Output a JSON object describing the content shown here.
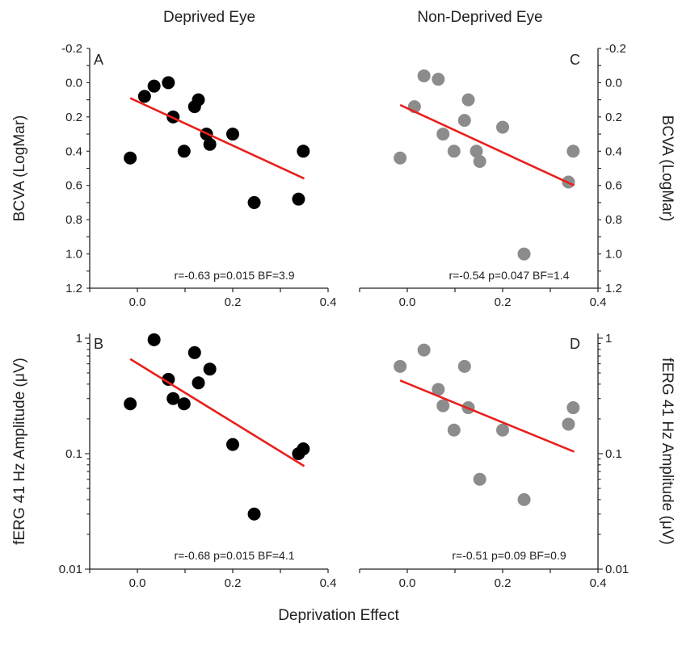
{
  "figure": {
    "col_titles": [
      "Deprived Eye",
      "Non-Deprived Eye"
    ],
    "xlabel": "Deprivation Effect"
  },
  "chart_data": [
    {
      "type": "scatter",
      "panel": "A",
      "ylabel": "BCVA (LogMar)",
      "y_axis": "left",
      "y_scale": "linear",
      "y_inverted": true,
      "ylim": [
        -0.2,
        1.2
      ],
      "yticks": [
        -0.2,
        0.0,
        0.2,
        0.4,
        0.6,
        0.8,
        1.0,
        1.2
      ],
      "ytick_labels": [
        "-0.2",
        "0.0",
        "0.2",
        "0.4",
        "0.6",
        "0.8",
        "1.0",
        "1.2"
      ],
      "xlim": [
        -0.1,
        0.4
      ],
      "xticks": [
        0.0,
        0.2,
        0.4
      ],
      "xtick_labels": [
        "0.0",
        "0.2",
        "0.4"
      ],
      "point_color": "#000000",
      "fit_color": "#e8201c",
      "points": [
        [
          -0.015,
          0.44
        ],
        [
          0.015,
          0.08
        ],
        [
          0.035,
          0.02
        ],
        [
          0.065,
          0.0
        ],
        [
          0.075,
          0.2
        ],
        [
          0.098,
          0.4
        ],
        [
          0.12,
          0.14
        ],
        [
          0.128,
          0.1
        ],
        [
          0.145,
          0.3
        ],
        [
          0.152,
          0.36
        ],
        [
          0.2,
          0.3
        ],
        [
          0.245,
          0.7
        ],
        [
          0.338,
          0.68
        ],
        [
          0.348,
          0.4
        ]
      ],
      "fit": [
        [
          -0.015,
          0.09
        ],
        [
          0.35,
          0.56
        ]
      ],
      "stats": "r=-0.63 p=0.015 BF=3.9"
    },
    {
      "type": "scatter",
      "panel": "C",
      "ylabel": "BCVA (LogMar)",
      "y_axis": "right",
      "y_scale": "linear",
      "y_inverted": true,
      "ylim": [
        -0.2,
        1.2
      ],
      "yticks": [
        -0.2,
        0.0,
        0.2,
        0.4,
        0.6,
        0.8,
        1.0,
        1.2
      ],
      "ytick_labels": [
        "-0.2",
        "0.0",
        "0.2",
        "0.4",
        "0.6",
        "0.8",
        "1.0",
        "1.2"
      ],
      "xlim": [
        -0.1,
        0.4
      ],
      "xticks": [
        0.0,
        0.2,
        0.4
      ],
      "xtick_labels": [
        "0.0",
        "0.2",
        "0.4"
      ],
      "point_color": "#8c8c8c",
      "fit_color": "#e8201c",
      "points": [
        [
          -0.015,
          0.44
        ],
        [
          0.015,
          0.14
        ],
        [
          0.035,
          -0.04
        ],
        [
          0.065,
          -0.02
        ],
        [
          0.075,
          0.3
        ],
        [
          0.098,
          0.4
        ],
        [
          0.12,
          0.22
        ],
        [
          0.128,
          0.1
        ],
        [
          0.145,
          0.4
        ],
        [
          0.152,
          0.46
        ],
        [
          0.2,
          0.26
        ],
        [
          0.245,
          1.0
        ],
        [
          0.338,
          0.58
        ],
        [
          0.348,
          0.4
        ]
      ],
      "fit": [
        [
          -0.015,
          0.13
        ],
        [
          0.35,
          0.6
        ]
      ],
      "stats": "r=-0.54 p=0.047 BF=1.4"
    },
    {
      "type": "scatter",
      "panel": "B",
      "ylabel": "fERG 41 Hz Amplitude (μV)",
      "y_axis": "left",
      "y_scale": "log",
      "y_inverted": false,
      "ylim": [
        0.01,
        1.1
      ],
      "yticks": [
        0.01,
        0.1,
        1
      ],
      "ytick_labels": [
        "0.01",
        "0.1",
        "1"
      ],
      "xlim": [
        -0.1,
        0.4
      ],
      "xticks": [
        0.0,
        0.2,
        0.4
      ],
      "xtick_labels": [
        "0.0",
        "0.2",
        "0.4"
      ],
      "point_color": "#000000",
      "fit_color": "#e8201c",
      "points": [
        [
          -0.015,
          0.27
        ],
        [
          0.035,
          0.97
        ],
        [
          0.065,
          0.44
        ],
        [
          0.075,
          0.3
        ],
        [
          0.098,
          0.27
        ],
        [
          0.12,
          0.75
        ],
        [
          0.128,
          0.41
        ],
        [
          0.152,
          0.54
        ],
        [
          0.2,
          0.12
        ],
        [
          0.245,
          0.03
        ],
        [
          0.338,
          0.1
        ],
        [
          0.348,
          0.11
        ]
      ],
      "fit": [
        [
          -0.015,
          0.66
        ],
        [
          0.35,
          0.078
        ]
      ],
      "stats": "r=-0.68 p=0.015 BF=4.1"
    },
    {
      "type": "scatter",
      "panel": "D",
      "ylabel": "fERG 41 Hz Amplitude (μV)",
      "y_axis": "right",
      "y_scale": "log",
      "y_inverted": false,
      "ylim": [
        0.01,
        1.1
      ],
      "yticks": [
        0.01,
        0.1,
        1
      ],
      "ytick_labels": [
        "0.01",
        "0.1",
        "1"
      ],
      "xlim": [
        -0.1,
        0.4
      ],
      "xticks": [
        0.0,
        0.2,
        0.4
      ],
      "xtick_labels": [
        "0.0",
        "0.2",
        "0.4"
      ],
      "point_color": "#8c8c8c",
      "fit_color": "#e8201c",
      "points": [
        [
          -0.015,
          0.57
        ],
        [
          0.035,
          0.79
        ],
        [
          0.065,
          0.36
        ],
        [
          0.075,
          0.26
        ],
        [
          0.098,
          0.16
        ],
        [
          0.12,
          0.57
        ],
        [
          0.128,
          0.25
        ],
        [
          0.152,
          0.06
        ],
        [
          0.2,
          0.16
        ],
        [
          0.245,
          0.04
        ],
        [
          0.338,
          0.18
        ],
        [
          0.348,
          0.25
        ]
      ],
      "fit": [
        [
          -0.015,
          0.43
        ],
        [
          0.35,
          0.104
        ]
      ],
      "stats": "r=-0.51 p=0.09 BF=0.9"
    }
  ]
}
